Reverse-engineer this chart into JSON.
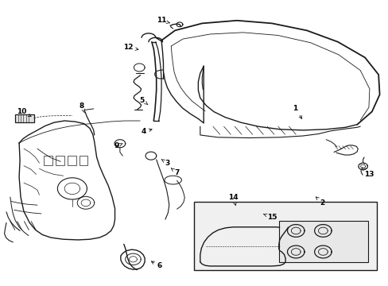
{
  "background_color": "#ffffff",
  "line_color": "#1a1a1a",
  "text_color": "#000000",
  "fig_width": 4.89,
  "fig_height": 3.6,
  "dpi": 100,
  "label_positions": {
    "1": [
      0.76,
      0.62,
      0.02,
      -0.04
    ],
    "2": [
      0.83,
      0.29,
      -0.02,
      0.025
    ],
    "3": [
      0.43,
      0.43,
      -0.018,
      0.015
    ],
    "4": [
      0.37,
      0.54,
      0.025,
      0.01
    ],
    "5": [
      0.365,
      0.65,
      0.018,
      -0.018
    ],
    "6": [
      0.41,
      0.068,
      -0.025,
      0.02
    ],
    "7": [
      0.455,
      0.395,
      -0.018,
      0.02
    ],
    "8": [
      0.21,
      0.63,
      0.008,
      -0.028
    ],
    "9": [
      0.3,
      0.49,
      0.018,
      0.01
    ],
    "10": [
      0.055,
      0.61,
      0.028,
      -0.02
    ],
    "11": [
      0.415,
      0.93,
      0.025,
      -0.01
    ],
    "12": [
      0.33,
      0.835,
      0.03,
      -0.008
    ],
    "13": [
      0.95,
      0.39,
      -0.02,
      0.028
    ],
    "14": [
      0.6,
      0.31,
      0.008,
      -0.035
    ],
    "15": [
      0.7,
      0.24,
      -0.025,
      0.012
    ]
  }
}
